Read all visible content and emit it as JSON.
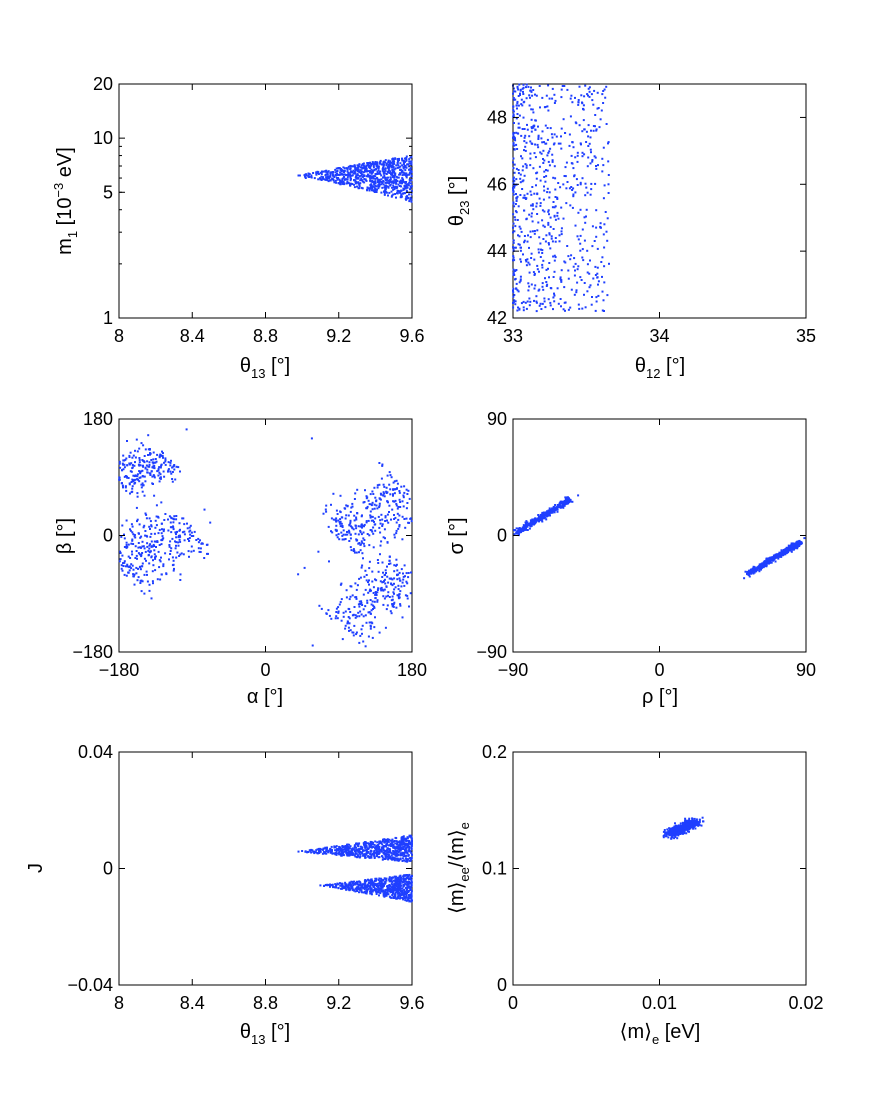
{
  "chart_data": [
    {
      "id": "p1",
      "type": "scatter",
      "xlabel": "θ13 [°]",
      "ylabel": "m1 [10−3 eV]",
      "xlim": [
        8,
        9.6
      ],
      "ylim": [
        1,
        20
      ],
      "yscale": "log",
      "xticks": [
        "8",
        "8.4",
        "8.8",
        "9.2",
        "9.6"
      ],
      "xtick_values": [
        8,
        8.4,
        8.8,
        9.2,
        9.6
      ],
      "yticks": [
        "1",
        "5",
        "10",
        "20"
      ],
      "ytick_values": [
        1,
        5,
        10,
        20
      ],
      "point_color": "#1f3fff",
      "clusters": [
        {
          "shape": "wedge",
          "x_range": [
            8.98,
            9.6
          ],
          "apex_y": 6.2,
          "y_low_end": 4.4,
          "y_high_end": 8.0,
          "count": 800
        }
      ],
      "points": [
        [
          8.98,
          6.2
        ],
        [
          9.02,
          6.0
        ],
        [
          9.06,
          6.4
        ],
        [
          9.1,
          5.9
        ],
        [
          9.14,
          6.3
        ]
      ]
    },
    {
      "id": "p2",
      "type": "scatter",
      "xlabel": "θ12 [°]",
      "ylabel": "θ23 [°]",
      "xlim": [
        33,
        35
      ],
      "ylim": [
        42,
        49
      ],
      "xticks": [
        "33",
        "34",
        "35"
      ],
      "xtick_values": [
        33,
        34,
        35
      ],
      "yticks": [
        "42",
        "44",
        "46",
        "48"
      ],
      "ytick_values": [
        42,
        44,
        46,
        48
      ],
      "point_color": "#1f3fff",
      "clusters": [
        {
          "shape": "band",
          "x_range": [
            33.0,
            33.66
          ],
          "y_range": [
            42.2,
            49.0
          ],
          "x_decay": true,
          "count": 750
        }
      ],
      "points": [
        [
          33.6,
          44.7
        ],
        [
          33.62,
          44.5
        ],
        [
          33.55,
          47.6
        ],
        [
          33.5,
          45.9
        ],
        [
          33.58,
          43.0
        ]
      ]
    },
    {
      "id": "p3",
      "type": "scatter",
      "xlabel": "α [°]",
      "ylabel": "β [°]",
      "xlim": [
        -180,
        180
      ],
      "ylim": [
        -180,
        180
      ],
      "xticks": [
        "−180",
        "0",
        "180"
      ],
      "xtick_values": [
        -180,
        0,
        180
      ],
      "yticks": [
        "−180",
        "0",
        "180"
      ],
      "ytick_values": [
        -180,
        0,
        180
      ],
      "point_color": "#1f3fff",
      "clusters": [
        {
          "shape": "slant",
          "from": [
            -180,
            80
          ],
          "to": [
            -120,
            125
          ],
          "width": 32,
          "count": 220
        },
        {
          "shape": "slant",
          "from": [
            -180,
            -55
          ],
          "to": [
            -95,
            20
          ],
          "width": 48,
          "count": 330
        },
        {
          "shape": "slant",
          "from": [
            90,
            -5
          ],
          "to": [
            180,
            70
          ],
          "width": 45,
          "count": 330
        },
        {
          "shape": "slant",
          "from": [
            90,
            -140
          ],
          "to": [
            180,
            -55
          ],
          "width": 42,
          "count": 280
        }
      ],
      "points": [
        [
          -97,
          164
        ],
        [
          -75,
          40
        ],
        [
          -68,
          20
        ],
        [
          57,
          150
        ],
        [
          48,
          -50
        ],
        [
          40,
          -60
        ],
        [
          65,
          -25
        ],
        [
          78,
          -40
        ],
        [
          58,
          -170
        ],
        [
          95,
          -160
        ],
        [
          118,
          -145
        ]
      ]
    },
    {
      "id": "p4",
      "type": "scatter",
      "xlabel": "ρ [°]",
      "ylabel": "σ [°]",
      "xlim": [
        -90,
        90
      ],
      "ylim": [
        -90,
        90
      ],
      "xticks": [
        "−90",
        "0",
        "90"
      ],
      "xtick_values": [
        -90,
        0,
        90
      ],
      "yticks": [
        "−90",
        "0",
        "90"
      ],
      "ytick_values": [
        -90,
        0,
        90
      ],
      "point_color": "#1f3fff",
      "clusters": [
        {
          "shape": "line",
          "from": [
            -88,
            2
          ],
          "to": [
            -55,
            28
          ],
          "width": 2.2,
          "count": 420
        },
        {
          "shape": "line",
          "from": [
            54,
            -30
          ],
          "to": [
            87,
            -5
          ],
          "width": 2.2,
          "count": 420
        }
      ],
      "points": [
        [
          -89,
          1
        ],
        [
          -50,
          31
        ],
        [
          89,
          -2
        ],
        [
          52,
          -33
        ]
      ]
    },
    {
      "id": "p5",
      "type": "scatter",
      "xlabel": "θ13 [°]",
      "ylabel": "J",
      "xlim": [
        8,
        9.6
      ],
      "ylim": [
        -0.04,
        0.04
      ],
      "xticks": [
        "8",
        "8.4",
        "8.8",
        "9.2",
        "9.6"
      ],
      "xtick_values": [
        8,
        8.4,
        8.8,
        9.2,
        9.6
      ],
      "yticks": [
        "−0.04",
        "0",
        "0.04"
      ],
      "ytick_values": [
        -0.04,
        0,
        0.04
      ],
      "point_color": "#1f3fff",
      "clusters": [
        {
          "shape": "wedge",
          "x_range": [
            8.98,
            9.6
          ],
          "apex_y": 0.0058,
          "y_low_end": 0.002,
          "y_high_end": 0.0115,
          "count": 700
        },
        {
          "shape": "wedge",
          "x_range": [
            9.1,
            9.6
          ],
          "apex_y": -0.0058,
          "y_low_end": -0.0115,
          "y_high_end": -0.002,
          "count": 650
        }
      ],
      "points": [
        [
          8.98,
          0.0058
        ],
        [
          9.0,
          0.006
        ],
        [
          9.1,
          -0.0058
        ],
        [
          9.12,
          -0.006
        ]
      ]
    },
    {
      "id": "p6",
      "type": "scatter",
      "xlabel": "⟨m⟩e [eV]",
      "ylabel": "⟨m⟩ee/⟨m⟩e",
      "xlim": [
        0,
        0.02
      ],
      "ylim": [
        0,
        0.2
      ],
      "xticks": [
        "0",
        "0.01",
        "0.02"
      ],
      "xtick_values": [
        0,
        0.01,
        0.02
      ],
      "yticks": [
        "0",
        "0.1",
        "0.2"
      ],
      "ytick_values": [
        0,
        0.1,
        0.2
      ],
      "point_color": "#1f3fff",
      "clusters": [
        {
          "shape": "blob",
          "from": [
            0.0107,
            0.129
          ],
          "to": [
            0.0125,
            0.1405
          ],
          "width": 0.0035,
          "count": 500
        }
      ],
      "points": [
        [
          0.0108,
          0.1255
        ],
        [
          0.0124,
          0.1408
        ]
      ]
    }
  ]
}
